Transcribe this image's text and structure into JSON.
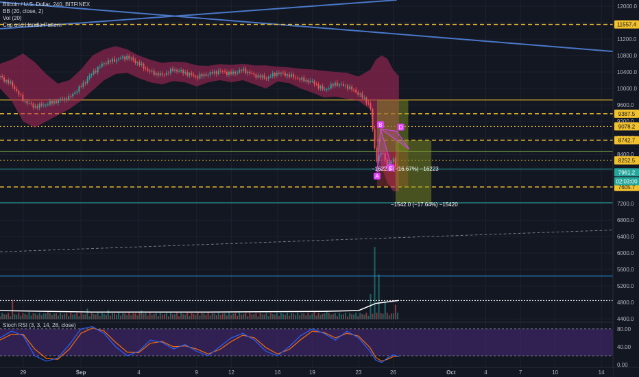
{
  "legend": {
    "symbol": "Bitcoin / U.S. Dollar, 240, BITFINEX",
    "bb": "BB (20, close, 2)",
    "vol": "Vol (20)",
    "pattern": "Cup and Handle Pattern"
  },
  "stoch_label": "Stoch RSI (3, 3, 14, 28, close)",
  "annotations": {
    "measure1": "−1622.3 (−16.67%) −16223",
    "measure2": "−1542.0 (−17.64%) −15420"
  },
  "pattern_points": [
    "A",
    "B",
    "C",
    "D"
  ],
  "countdown": "02:03:00",
  "colors": {
    "background": "#131722",
    "grid": "#1e2230",
    "up": "#26a69a",
    "down": "#ef5350",
    "bb_fill": "#b3285a",
    "trendline": "#4a78c8",
    "dashed_level": "#f2c12e",
    "position_profit": "#8a9a1e",
    "position_loss": "#c0392b",
    "stoch_zone": "#4a2a7a",
    "stoch_k": "#2962ff",
    "stoch_d": "#ff6d00",
    "pattern": "#e040fb"
  },
  "chart_data": {
    "type": "candlestick",
    "price_axis": {
      "ticks": [
        "12000.0",
        "11600.0",
        "11200.0",
        "10800.0",
        "10400.0",
        "10000.0",
        "9600.0",
        "9200.0",
        "8800.0",
        "8400.0",
        "8000.0",
        "7600.0",
        "7200.0",
        "6800.0",
        "6400.0",
        "6000.0",
        "5600.0",
        "5200.0",
        "4800.0",
        "4400.0"
      ],
      "range": [
        4320,
        12150
      ]
    },
    "price_labels": [
      {
        "value": 11557.4,
        "text": "11557.4",
        "style": "yellow"
      },
      {
        "value": 9387.5,
        "text": "9387.5",
        "style": "yellow"
      },
      {
        "value": 9078.2,
        "text": "9078.2",
        "style": "yellow"
      },
      {
        "value": 8742.7,
        "text": "8742.7",
        "style": "yellow"
      },
      {
        "value": 8252.5,
        "text": "8252.5",
        "style": "yellow"
      },
      {
        "value": 7961.2,
        "text": "7961.2",
        "style": "teal"
      },
      {
        "value": 7605.7,
        "text": "7605.7",
        "style": "yellow"
      }
    ],
    "dashed_levels": [
      11557.4,
      9387.5,
      8742.7,
      7605.7
    ],
    "dotted_levels": [
      9078.2,
      8252.5
    ],
    "solid_levels": [
      {
        "value": 9720,
        "color": "#f2c12e"
      },
      {
        "value": 8470,
        "color": "#8bc34a"
      },
      {
        "value": 8040,
        "color": "#26a69a"
      },
      {
        "value": 7220,
        "color": "#26a69a"
      },
      {
        "value": 5440,
        "color": "#2a9df4"
      }
    ],
    "time_axis": {
      "labels": [
        "29",
        "Sep",
        "4",
        "9",
        "12",
        "16",
        "19",
        "23",
        "26",
        "Oct",
        "4",
        "7",
        "10",
        "14"
      ],
      "positions": [
        29,
        34,
        39,
        44,
        47,
        51,
        54,
        58,
        61,
        66,
        69,
        72,
        75,
        79
      ]
    },
    "x_range": [
      27,
      80
    ],
    "last_x": 61.5,
    "current_price": 7961.2,
    "price_path": [
      [
        27,
        10280
      ],
      [
        28,
        10100
      ],
      [
        29,
        9720
      ],
      [
        30,
        9550
      ],
      [
        31,
        9620
      ],
      [
        32,
        9700
      ],
      [
        33,
        9780
      ],
      [
        34,
        10050
      ],
      [
        35,
        10380
      ],
      [
        36,
        10620
      ],
      [
        37,
        10700
      ],
      [
        38,
        10770
      ],
      [
        39,
        10600
      ],
      [
        40,
        10400
      ],
      [
        41,
        10320
      ],
      [
        42,
        10460
      ],
      [
        43,
        10380
      ],
      [
        44,
        10280
      ],
      [
        45,
        10350
      ],
      [
        46,
        10420
      ],
      [
        47,
        10360
      ],
      [
        48,
        10450
      ],
      [
        49,
        10320
      ],
      [
        50,
        10250
      ],
      [
        51,
        10380
      ],
      [
        52,
        10320
      ],
      [
        53,
        10220
      ],
      [
        54,
        10160
      ],
      [
        55,
        9960
      ],
      [
        56,
        10120
      ],
      [
        57,
        10050
      ],
      [
        58,
        9880
      ],
      [
        59,
        9600
      ],
      [
        59.5,
        8250
      ],
      [
        60,
        8470
      ],
      [
        60.5,
        8140
      ],
      [
        61,
        8260
      ],
      [
        61.5,
        7961
      ]
    ],
    "bb_upper": [
      [
        27,
        10600
      ],
      [
        28,
        10700
      ],
      [
        29,
        10850
      ],
      [
        30,
        10640
      ],
      [
        31,
        10350
      ],
      [
        32,
        10120
      ],
      [
        33,
        10200
      ],
      [
        34,
        10460
      ],
      [
        35,
        10800
      ],
      [
        36,
        10950
      ],
      [
        37,
        11030
      ],
      [
        38,
        10950
      ],
      [
        39,
        10800
      ],
      [
        40,
        10700
      ],
      [
        41,
        10620
      ],
      [
        42,
        10650
      ],
      [
        43,
        10640
      ],
      [
        44,
        10560
      ],
      [
        45,
        10550
      ],
      [
        46,
        10590
      ],
      [
        47,
        10570
      ],
      [
        48,
        10600
      ],
      [
        49,
        10560
      ],
      [
        50,
        10560
      ],
      [
        51,
        10530
      ],
      [
        52,
        10510
      ],
      [
        53,
        10480
      ],
      [
        54,
        10460
      ],
      [
        55,
        10430
      ],
      [
        56,
        10400
      ],
      [
        57,
        10380
      ],
      [
        58,
        10290
      ],
      [
        59,
        10450
      ],
      [
        59.5,
        10700
      ],
      [
        60,
        10800
      ],
      [
        60.5,
        10720
      ],
      [
        61,
        10450
      ],
      [
        61.5,
        10300
      ]
    ],
    "bb_lower": [
      [
        27,
        10000
      ],
      [
        28,
        9700
      ],
      [
        29,
        9200
      ],
      [
        30,
        9050
      ],
      [
        31,
        9200
      ],
      [
        32,
        9350
      ],
      [
        33,
        9500
      ],
      [
        34,
        9700
      ],
      [
        35,
        9950
      ],
      [
        36,
        10200
      ],
      [
        37,
        10350
      ],
      [
        38,
        10380
      ],
      [
        39,
        10250
      ],
      [
        40,
        10150
      ],
      [
        41,
        10100
      ],
      [
        42,
        10180
      ],
      [
        43,
        10150
      ],
      [
        44,
        10050
      ],
      [
        45,
        10150
      ],
      [
        46,
        10200
      ],
      [
        47,
        10150
      ],
      [
        48,
        10200
      ],
      [
        49,
        10100
      ],
      [
        50,
        10000
      ],
      [
        51,
        10170
      ],
      [
        52,
        10130
      ],
      [
        53,
        10000
      ],
      [
        54,
        9900
      ],
      [
        55,
        9780
      ],
      [
        56,
        9800
      ],
      [
        57,
        9750
      ],
      [
        58,
        9700
      ],
      [
        59,
        9500
      ],
      [
        59.5,
        8700
      ],
      [
        60,
        8100
      ],
      [
        60.5,
        7700
      ],
      [
        61,
        7500
      ],
      [
        61.5,
        7500
      ]
    ],
    "volume_spikes": [
      [
        28.1,
        0.27
      ],
      [
        29.6,
        0.1
      ],
      [
        31.2,
        0.12
      ],
      [
        34.6,
        0.15
      ],
      [
        36.4,
        0.13
      ],
      [
        39.2,
        0.12
      ],
      [
        45.6,
        0.08
      ],
      [
        54.2,
        0.11
      ],
      [
        55.3,
        0.12
      ],
      [
        59.0,
        0.35
      ],
      [
        59.4,
        1.0
      ],
      [
        59.8,
        0.62
      ],
      [
        60.3,
        0.25
      ],
      [
        61.2,
        0.2
      ]
    ],
    "volume_ma": [
      [
        27,
        0.12
      ],
      [
        35,
        0.1
      ],
      [
        45,
        0.1
      ],
      [
        55,
        0.11
      ],
      [
        58,
        0.12
      ],
      [
        59.5,
        0.22
      ],
      [
        61.5,
        0.26
      ]
    ],
    "stoch_axis": {
      "ticks": [
        "80.00",
        "40.00",
        "0.00"
      ],
      "range": [
        -6,
        95
      ]
    },
    "stoch_k": [
      [
        27,
        60
      ],
      [
        28,
        75
      ],
      [
        29,
        65
      ],
      [
        30,
        20
      ],
      [
        31,
        8
      ],
      [
        32,
        15
      ],
      [
        33,
        45
      ],
      [
        34,
        80
      ],
      [
        35,
        85
      ],
      [
        36,
        70
      ],
      [
        37,
        40
      ],
      [
        38,
        20
      ],
      [
        39,
        30
      ],
      [
        40,
        55
      ],
      [
        41,
        50
      ],
      [
        42,
        35
      ],
      [
        43,
        45
      ],
      [
        44,
        30
      ],
      [
        45,
        20
      ],
      [
        46,
        40
      ],
      [
        47,
        60
      ],
      [
        48,
        70
      ],
      [
        49,
        55
      ],
      [
        50,
        30
      ],
      [
        51,
        20
      ],
      [
        52,
        40
      ],
      [
        53,
        65
      ],
      [
        54,
        80
      ],
      [
        55,
        70
      ],
      [
        56,
        55
      ],
      [
        57,
        75
      ],
      [
        58,
        60
      ],
      [
        59,
        30
      ],
      [
        59.5,
        10
      ],
      [
        60,
        5
      ],
      [
        60.5,
        15
      ],
      [
        61,
        22
      ],
      [
        61.5,
        18
      ]
    ],
    "stoch_d": [
      [
        27,
        55
      ],
      [
        28,
        68
      ],
      [
        29,
        68
      ],
      [
        30,
        35
      ],
      [
        31,
        14
      ],
      [
        32,
        12
      ],
      [
        33,
        35
      ],
      [
        34,
        70
      ],
      [
        35,
        82
      ],
      [
        36,
        75
      ],
      [
        37,
        50
      ],
      [
        38,
        28
      ],
      [
        39,
        27
      ],
      [
        40,
        48
      ],
      [
        41,
        52
      ],
      [
        42,
        40
      ],
      [
        43,
        42
      ],
      [
        44,
        35
      ],
      [
        45,
        24
      ],
      [
        46,
        34
      ],
      [
        47,
        52
      ],
      [
        48,
        66
      ],
      [
        49,
        60
      ],
      [
        50,
        38
      ],
      [
        51,
        24
      ],
      [
        52,
        34
      ],
      [
        53,
        56
      ],
      [
        54,
        75
      ],
      [
        55,
        72
      ],
      [
        56,
        60
      ],
      [
        57,
        70
      ],
      [
        58,
        64
      ],
      [
        59,
        38
      ],
      [
        59.5,
        16
      ],
      [
        60,
        8
      ],
      [
        60.5,
        12
      ],
      [
        61,
        18
      ],
      [
        61.5,
        19
      ]
    ]
  }
}
